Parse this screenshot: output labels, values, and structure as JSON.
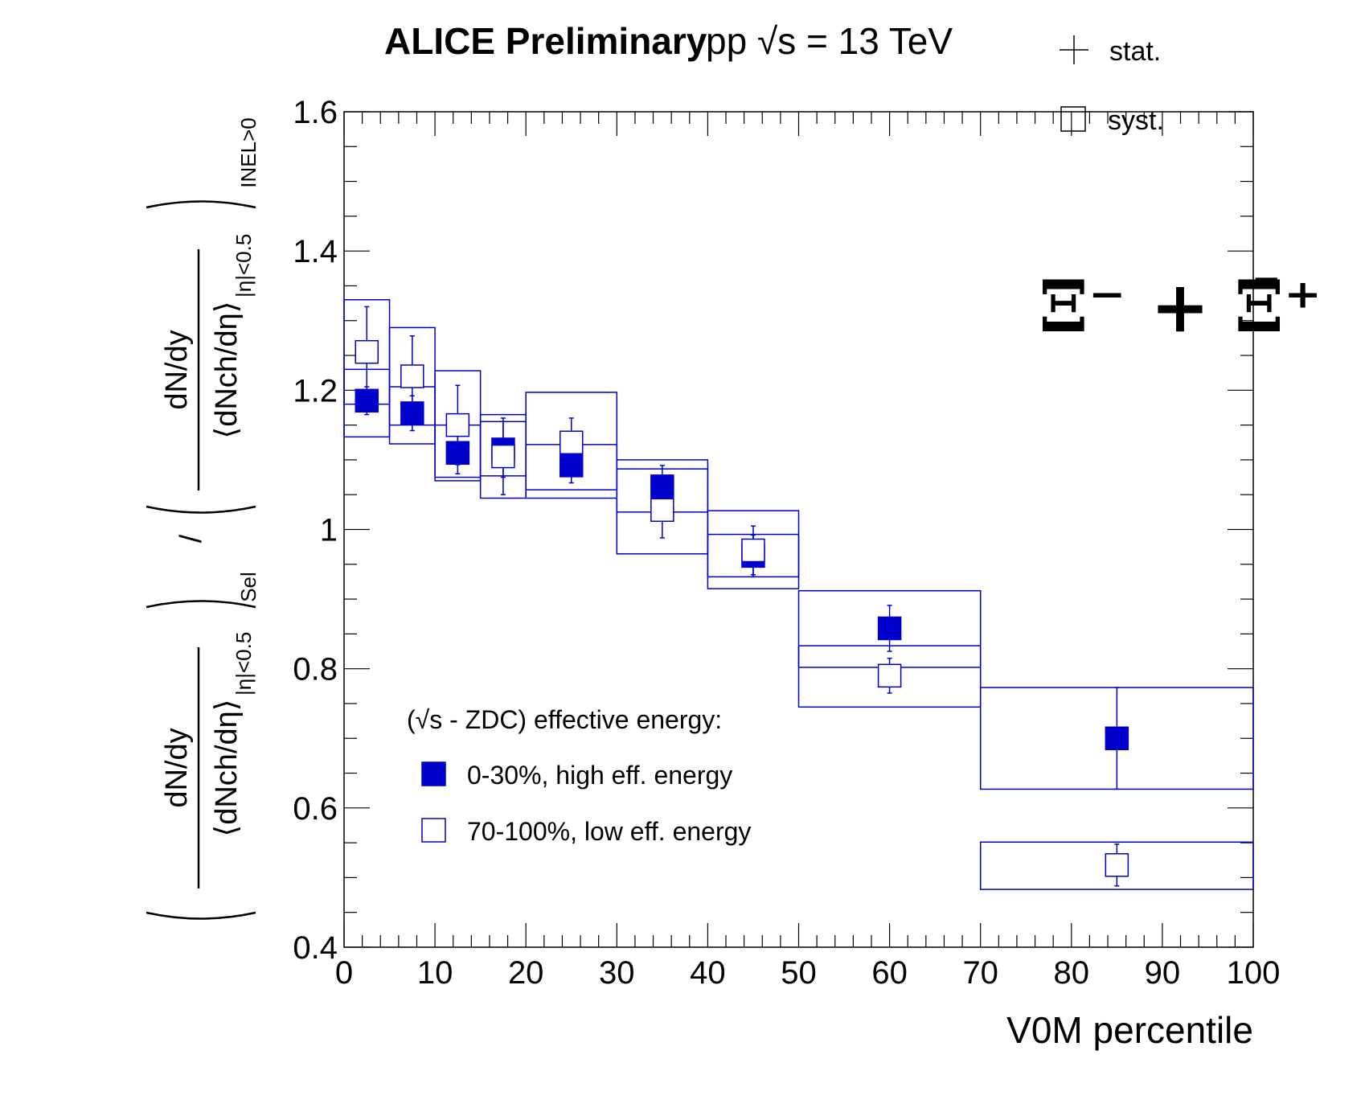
{
  "chart_data": {
    "type": "scatter",
    "title_bold": "ALICE Preliminary",
    "title": "pp  √s = 13 TeV",
    "xlabel": "V0M percentile",
    "ylabel": {
      "numerator": "dN/dy",
      "denominator": "⟨dNch/dη⟩",
      "sub_eta": "|η|<0.5",
      "sub_sel": "Sel",
      "sub_inel": "INEL>0",
      "slash": "/"
    },
    "xlim": [
      0,
      100
    ],
    "ylim": [
      0.4,
      1.6
    ],
    "x_ticks": [
      "0",
      "10",
      "20",
      "30",
      "40",
      "50",
      "60",
      "70",
      "80",
      "90",
      "100"
    ],
    "y_ticks": [
      "0.4",
      "0.6",
      "0.8",
      "1",
      "1.2",
      "1.4",
      "1.6"
    ],
    "particle_label": "Ξ⁻ + Ξ̄⁺",
    "stat_label": "stat.",
    "syst_label": "syst.",
    "legend_header": "(√s - ZDC) effective energy:",
    "color": "#0000cc",
    "series": [
      {
        "name": "0-30%, high eff. energy",
        "marker": "filled-square",
        "points": [
          {
            "x": 2.5,
            "y": 1.185,
            "stat": 0.02,
            "syst_lo": 1.133,
            "syst_hi": 1.23,
            "xlo": 0,
            "xhi": 5
          },
          {
            "x": 7.5,
            "y": 1.167,
            "stat": 0.025,
            "syst_lo": 1.123,
            "syst_hi": 1.205,
            "xlo": 5,
            "xhi": 10
          },
          {
            "x": 12.5,
            "y": 1.11,
            "stat": 0.03,
            "syst_lo": 1.07,
            "syst_hi": 1.15,
            "xlo": 10,
            "xhi": 15
          },
          {
            "x": 17.5,
            "y": 1.115,
            "stat": 0.04,
            "syst_lo": 1.077,
            "syst_hi": 1.155,
            "xlo": 15,
            "xhi": 20
          },
          {
            "x": 25,
            "y": 1.092,
            "stat": 0.025,
            "syst_lo": 1.057,
            "syst_hi": 1.122,
            "xlo": 20,
            "xhi": 30
          },
          {
            "x": 35,
            "y": 1.062,
            "stat": 0.03,
            "syst_lo": 1.025,
            "syst_hi": 1.1,
            "xlo": 30,
            "xhi": 40
          },
          {
            "x": 45,
            "y": 0.962,
            "stat": 0.03,
            "syst_lo": 0.932,
            "syst_hi": 0.993,
            "xlo": 40,
            "xhi": 50
          },
          {
            "x": 60,
            "y": 0.858,
            "stat": 0.033,
            "syst_lo": 0.802,
            "syst_hi": 0.912,
            "xlo": 50,
            "xhi": 70
          },
          {
            "x": 85,
            "y": 0.7,
            "stat": 0.073,
            "syst_lo": 0.627,
            "syst_hi": 0.773,
            "xlo": 70,
            "xhi": 100
          }
        ]
      },
      {
        "name": "70-100%, low eff. energy",
        "marker": "open-square",
        "points": [
          {
            "x": 2.5,
            "y": 1.255,
            "stat": 0.065,
            "syst_lo": 1.18,
            "syst_hi": 1.33,
            "xlo": 0,
            "xhi": 5
          },
          {
            "x": 7.5,
            "y": 1.22,
            "stat": 0.058,
            "syst_lo": 1.15,
            "syst_hi": 1.29,
            "xlo": 5,
            "xhi": 10
          },
          {
            "x": 12.5,
            "y": 1.15,
            "stat": 0.057,
            "syst_lo": 1.075,
            "syst_hi": 1.228,
            "xlo": 10,
            "xhi": 15
          },
          {
            "x": 17.5,
            "y": 1.105,
            "stat": 0.055,
            "syst_lo": 1.045,
            "syst_hi": 1.165,
            "xlo": 15,
            "xhi": 20
          },
          {
            "x": 25,
            "y": 1.125,
            "stat": 0.035,
            "syst_lo": 1.045,
            "syst_hi": 1.197,
            "xlo": 20,
            "xhi": 30
          },
          {
            "x": 35,
            "y": 1.028,
            "stat": 0.04,
            "syst_lo": 0.965,
            "syst_hi": 1.087,
            "xlo": 30,
            "xhi": 40
          },
          {
            "x": 45,
            "y": 0.97,
            "stat": 0.035,
            "syst_lo": 0.915,
            "syst_hi": 1.027,
            "xlo": 40,
            "xhi": 50
          },
          {
            "x": 60,
            "y": 0.79,
            "stat": 0.025,
            "syst_lo": 0.745,
            "syst_hi": 0.833,
            "xlo": 50,
            "xhi": 70
          },
          {
            "x": 85,
            "y": 0.518,
            "stat": 0.03,
            "syst_lo": 0.483,
            "syst_hi": 0.551,
            "xlo": 70,
            "xhi": 100
          }
        ]
      }
    ]
  }
}
